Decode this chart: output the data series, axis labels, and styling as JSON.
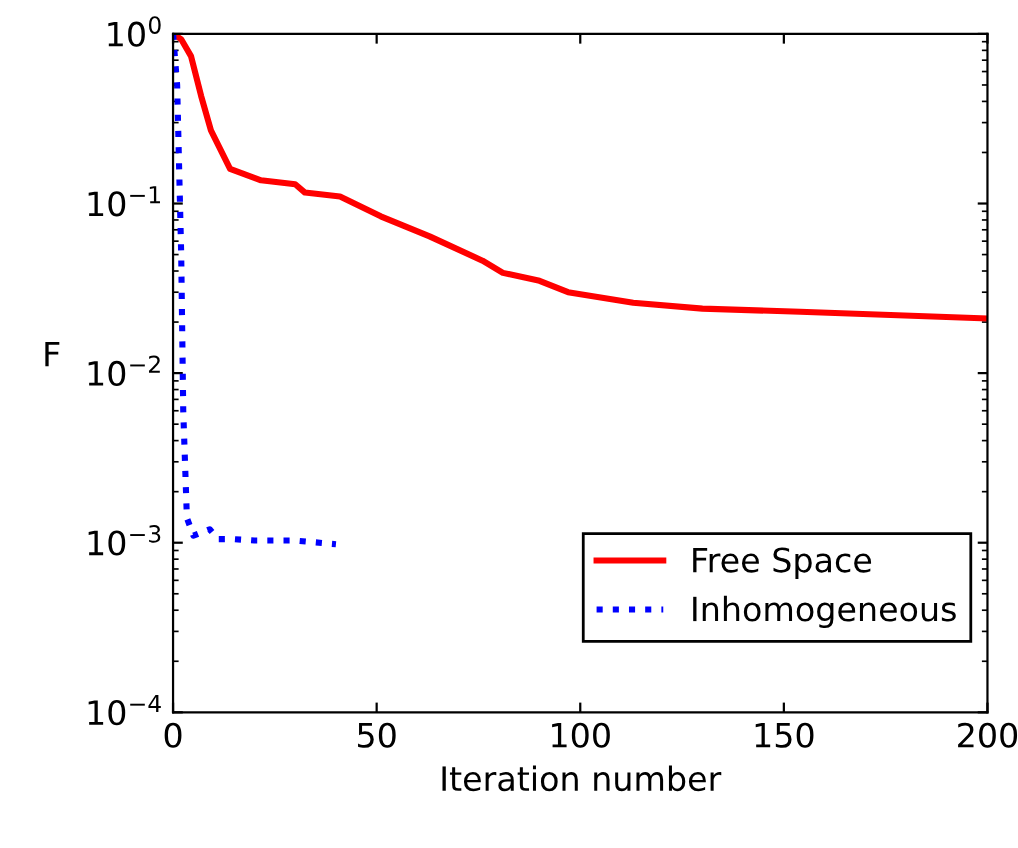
{
  "chart_data": {
    "type": "line",
    "xlabel": "Iteration number",
    "ylabel": "F",
    "log": "y",
    "xlim": [
      0,
      200
    ],
    "xticks": [
      0,
      50,
      100,
      150,
      200
    ],
    "ylim": [
      0.0001,
      1
    ],
    "yticks": [
      {
        "value": 0.0001,
        "label": "10$^{−4}$"
      },
      {
        "value": 0.001,
        "label": "10$^{−3}$"
      },
      {
        "value": 0.01,
        "label": "10$^{−2}$"
      },
      {
        "value": 0.1,
        "label": "10$^{−1}$"
      },
      {
        "value": 1,
        "label": "10$^{0}$"
      }
    ],
    "grid": false,
    "legend": "bottom right",
    "series": [
      {
        "name": "Free Space",
        "color": "#ff0000",
        "line_style": "solid",
        "x": [
          0,
          2,
          4.4,
          6.9,
          9.3,
          14,
          21.6,
          30,
          32.4,
          41,
          51,
          63,
          76,
          81,
          90,
          97,
          113,
          130,
          154,
          200
        ],
        "values": [
          1.0,
          0.93,
          0.74,
          0.43,
          0.27,
          0.16,
          0.137,
          0.13,
          0.116,
          0.11,
          0.084,
          0.064,
          0.046,
          0.039,
          0.035,
          0.03,
          0.026,
          0.024,
          0.023,
          0.021
        ]
      },
      {
        "name": "Inhomogeneous",
        "color": "#0000ff",
        "line_style": "dotted",
        "x": [
          0,
          1,
          2,
          2.5,
          3.4,
          5,
          7,
          9,
          11,
          15,
          20,
          30,
          40
        ],
        "values": [
          1.0,
          0.5,
          0.05,
          0.006,
          0.0014,
          0.0011,
          0.00115,
          0.0012,
          0.00105,
          0.00105,
          0.00103,
          0.00103,
          0.00098
        ]
      }
    ]
  }
}
